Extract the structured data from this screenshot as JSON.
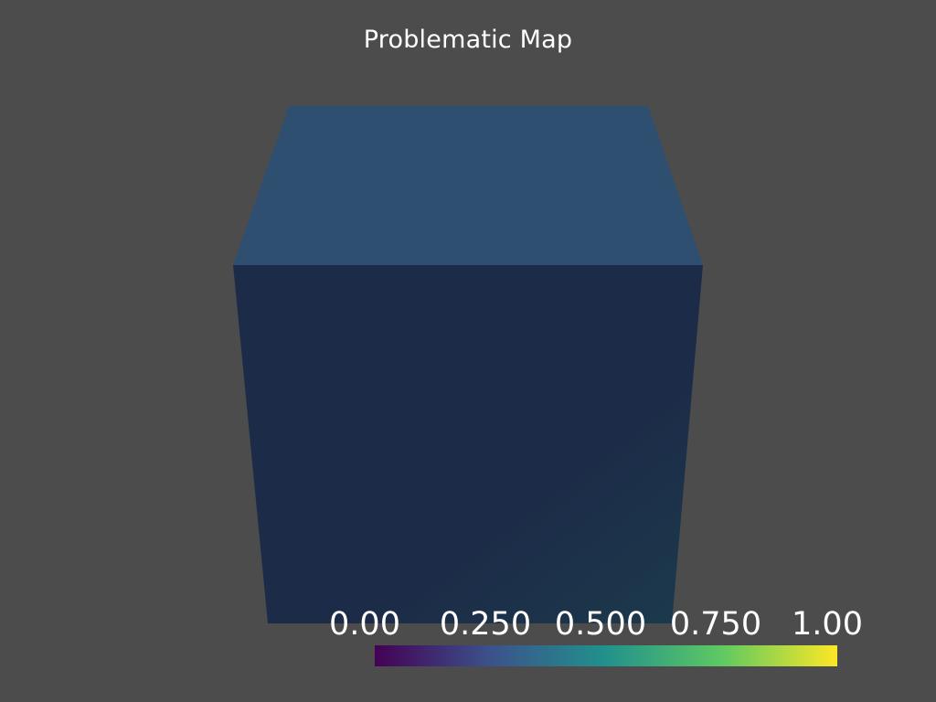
{
  "title": "Problematic Map",
  "scalar_bar": {
    "colormap": "viridis",
    "range": [
      0.0,
      1.0
    ],
    "labels": [
      "0.00",
      "0.250",
      "0.500",
      "0.750",
      "1.00"
    ],
    "stops": [
      "#440154",
      "#3b528b",
      "#21918c",
      "#5ec962",
      "#fde725"
    ]
  },
  "mesh": {
    "shape": "cube",
    "colors": {
      "top_face": "#2e4f70",
      "front_face": "#1c2c48",
      "front_face_corner": "#1c3a4c"
    }
  },
  "background_color": "#4c4c4c"
}
